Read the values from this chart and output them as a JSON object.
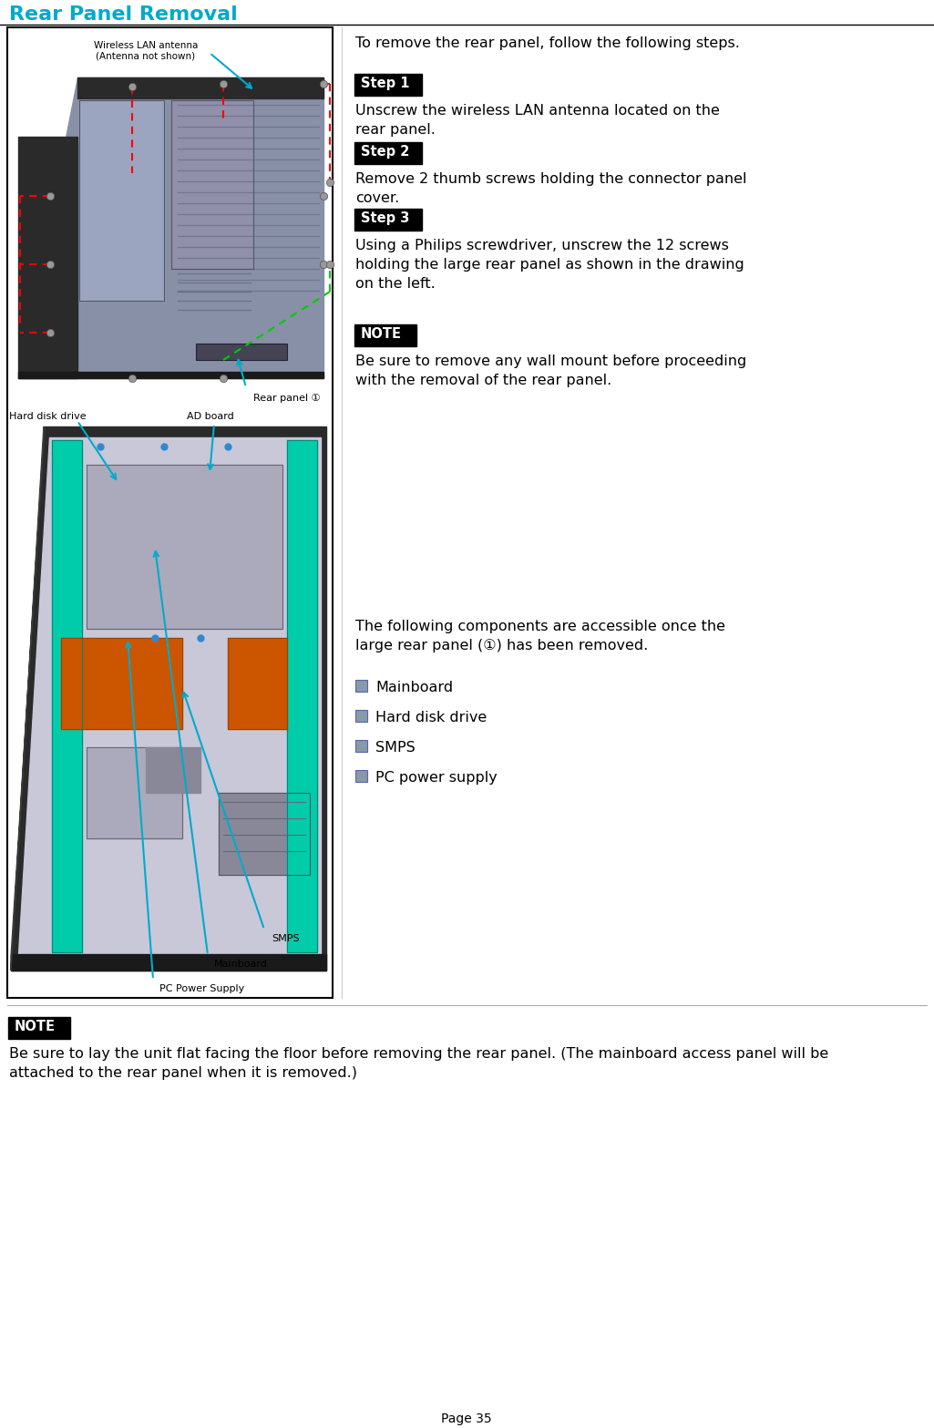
{
  "title": "Rear Panel Removal",
  "title_color": "#00AACC",
  "bg_color": "#FFFFFF",
  "intro_text": "To remove the rear panel, follow the following steps.",
  "steps": [
    {
      "label": "Step 1",
      "text": "Unscrew the wireless LAN antenna located on the\nrear panel."
    },
    {
      "label": "Step 2",
      "text": "Remove 2 thumb screws holding the connector panel\ncover."
    },
    {
      "label": "Step 3",
      "text": "Using a Philips screwdriver, unscrew the 12 screws\nholding the large rear panel as shown in the drawing\non the left."
    }
  ],
  "note1_text": "Be sure to remove any wall mount before proceeding\nwith the removal of the rear panel.",
  "components_intro": "The following components are accessible once the\nlarge rear panel (①) has been removed.",
  "components": [
    "Mainboard",
    "Hard disk drive",
    "SMPS",
    "PC power supply"
  ],
  "note2_text": "Be sure to lay the unit flat facing the floor before removing the rear panel. (The mainboard access panel will be\nattached to the rear panel when it is removed.)",
  "page_number": "Page 35",
  "left_panel_labels": {
    "wireless_lan": "Wireless LAN antenna\n(Antenna not shown)",
    "rear_panel": "Rear panel ①",
    "hard_disk": "Hard disk drive",
    "ad_board": "AD board",
    "smps": "SMPS",
    "mainboard": "Mainboard",
    "pc_power": "PC Power Supply"
  },
  "step_bg": "#000000",
  "step_fg": "#FFFFFF",
  "note_bg": "#000000",
  "note_fg": "#FFFFFF",
  "bullet_color": "#8899AA"
}
